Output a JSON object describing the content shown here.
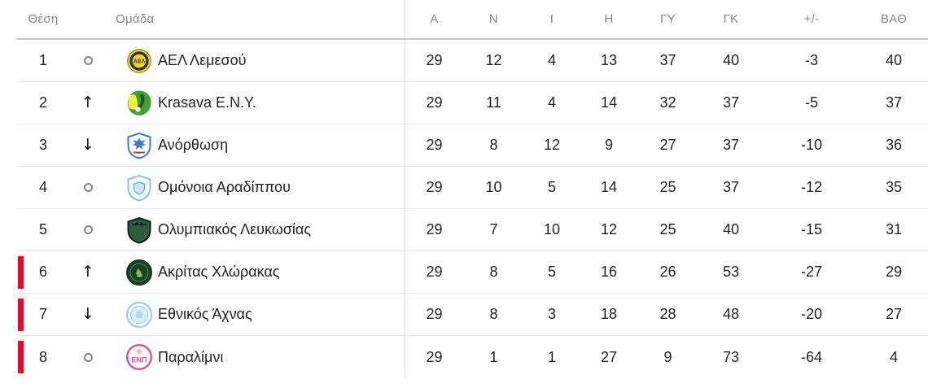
{
  "standings": {
    "headers": {
      "position": "Θέση",
      "team": "Ομάδα",
      "stats": [
        "Α",
        "Ν",
        "Ι",
        "Η",
        "ΓΥ",
        "ΓΚ",
        "+/-",
        "ΒΑΘ"
      ]
    },
    "icons": {
      "up_arrow": "↑",
      "down_arrow": "↓",
      "knight_glyph": "♞"
    },
    "rows": [
      {
        "position": "1",
        "movement": "none",
        "team": "ΑΕΛ Λεμεσού",
        "relegation": false,
        "crest": {
          "name": "ael-lemesou-crest",
          "bg": "#f3d713",
          "border": "#2a3272",
          "accent": "#2a3272",
          "label": "ΑΕΛ",
          "label_color": "#2a3272"
        },
        "stats": [
          "29",
          "12",
          "4",
          "13",
          "37",
          "40",
          "-3",
          "40"
        ]
      },
      {
        "position": "2",
        "movement": "up",
        "team": "Krasava E.N.Y.",
        "relegation": false,
        "crest": {
          "name": "krasava-eny-crest",
          "bg": "#41a233",
          "border": "#2e8424",
          "accent": "#f6ed4d",
          "accent2": "#ffffff",
          "detail": "#1d5a23"
        },
        "stats": [
          "29",
          "11",
          "4",
          "14",
          "32",
          "37",
          "-5",
          "37"
        ]
      },
      {
        "position": "3",
        "movement": "down",
        "team": "Ανόρθωση",
        "relegation": false,
        "crest": {
          "name": "anorthosis-crest",
          "bg": "#ffffff",
          "border": "#3c7cc3",
          "accent": "#3c7cc3",
          "detail": "#c0392b"
        },
        "stats": [
          "29",
          "8",
          "12",
          "9",
          "27",
          "37",
          "-10",
          "36"
        ]
      },
      {
        "position": "4",
        "movement": "none",
        "team": "Ομόνοια Αραδίππου",
        "relegation": false,
        "crest": {
          "name": "omonoia-aradippou-crest",
          "bg": "#f3f9fd",
          "border": "#8ec2e6",
          "accent": "#5aa6d8",
          "accent2": "#cfe6f6"
        },
        "stats": [
          "29",
          "10",
          "5",
          "14",
          "25",
          "37",
          "-12",
          "35"
        ]
      },
      {
        "position": "5",
        "movement": "none",
        "team": "Ολυμπιακός Λευκωσίας",
        "relegation": false,
        "crest": {
          "name": "olympiakos-lefkosias-crest",
          "bg": "#2c5e3b",
          "border": "#191c1e",
          "accent": "#191c1e"
        },
        "stats": [
          "29",
          "7",
          "10",
          "12",
          "25",
          "40",
          "-15",
          "31"
        ]
      },
      {
        "position": "6",
        "movement": "up",
        "team": "Ακρίτας Χλώρακας",
        "relegation": true,
        "crest": {
          "name": "akritas-chlorakas-crest",
          "bg": "#17402a",
          "border": "#0f2d1d",
          "accent": "#8bc34c"
        },
        "stats": [
          "29",
          "8",
          "5",
          "16",
          "26",
          "53",
          "-27",
          "29"
        ]
      },
      {
        "position": "7",
        "movement": "down",
        "team": "Εθνικός Άχνας",
        "relegation": true,
        "crest": {
          "name": "ethnikos-achnas-crest",
          "bg": "#ffffff",
          "border": "#92c8e8",
          "accent": "#d9ecf8",
          "accent2": "#b5d9ef"
        },
        "stats": [
          "29",
          "8",
          "3",
          "18",
          "28",
          "48",
          "-20",
          "27"
        ]
      },
      {
        "position": "8",
        "movement": "none",
        "team": "Παραλίμνι",
        "relegation": true,
        "crest": {
          "name": "paralimni-crest",
          "bg": "#ffffff",
          "border": "#e04f92",
          "accent": "#f2b8d2",
          "label": "ΕΝΠ",
          "label_color": "#e04f92"
        },
        "stats": [
          "29",
          "1",
          "1",
          "27",
          "9",
          "73",
          "-64",
          "4"
        ]
      }
    ],
    "colors": {
      "relegation_bar": "#e30b2d",
      "header_text": "#83838b",
      "row_text": "#222228",
      "header_divider": "#c7c7cb",
      "row_divider": "#e8e8ea",
      "column_divider": "#d9d9dc",
      "movement_neutral": "#84848c",
      "movement_arrow": "#141418"
    }
  }
}
